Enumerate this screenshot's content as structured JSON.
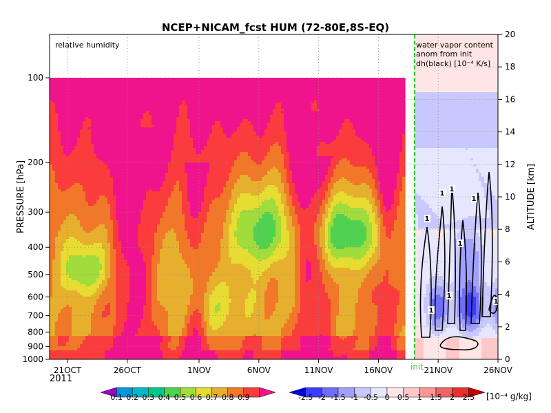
{
  "chart_data": {
    "type": "heatmap",
    "title": "NCEP+NICAM_fcst HUM (72-80E,8S-EQ)",
    "panel_labels": {
      "left": "relative humidity",
      "right": [
        "water vapor content",
        "anom from init",
        "dh(black) [10⁻⁴ K/s]"
      ]
    },
    "ylabel_left": "PRESSURE [hPa]",
    "ylabel_right": "ALTITUDE [km]",
    "y_scale_left": "log",
    "ylim_left": [
      1000,
      100
    ],
    "ylim_right": [
      0,
      20
    ],
    "grid": true,
    "pressure_ticks": [
      100,
      200,
      300,
      400,
      500,
      600,
      700,
      800,
      900,
      1000
    ],
    "altitude_ticks": [
      0,
      2,
      4,
      6,
      8,
      10,
      12,
      14,
      16,
      18,
      20
    ],
    "x_ticks": [
      {
        "label": "21OCT",
        "day": 0
      },
      {
        "label": "26OCT",
        "day": 5
      },
      {
        "label": "1NOV",
        "day": 11
      },
      {
        "label": "6NOV",
        "day": 16
      },
      {
        "label": "11NOV",
        "day": 21
      },
      {
        "label": "16NOV",
        "day": 26
      },
      {
        "label": "21NOV",
        "day": 31
      },
      {
        "label": "26NOV",
        "day": 36
      }
    ],
    "year_label": "2011",
    "x_range_days": [
      -1.5,
      36
    ],
    "init_day": 28.2,
    "init_label": "init",
    "contour_label": "1",
    "rh_colorbar": {
      "labels": [
        "0.1",
        "0.2",
        "0.3",
        "0.4",
        "0.5",
        "0.6",
        "0.7",
        "0.8",
        "0.9"
      ],
      "colors": [
        "#a000c8",
        "#0096dc",
        "#00b9c8",
        "#00c88c",
        "#50d250",
        "#a0dc3c",
        "#e6dc32",
        "#e6af2d",
        "#f07828",
        "#fa3c3c",
        "#f0148c"
      ]
    },
    "anom_colorbar": {
      "labels": [
        "-2.5",
        "-2",
        "-1.5",
        "-1",
        "-0.5",
        "0",
        "0.5",
        "1",
        "1.5",
        "2",
        "2.5"
      ],
      "unit": "[10⁻⁴ g/kg]",
      "colors": [
        "#0000e6",
        "#3c3cfa",
        "#6e6efa",
        "#a0a0ff",
        "#c8c8ff",
        "#e6e6ff",
        "#ffe6e6",
        "#ffc8c8",
        "#fa9696",
        "#f06464",
        "#e63232",
        "#c80000"
      ]
    }
  }
}
